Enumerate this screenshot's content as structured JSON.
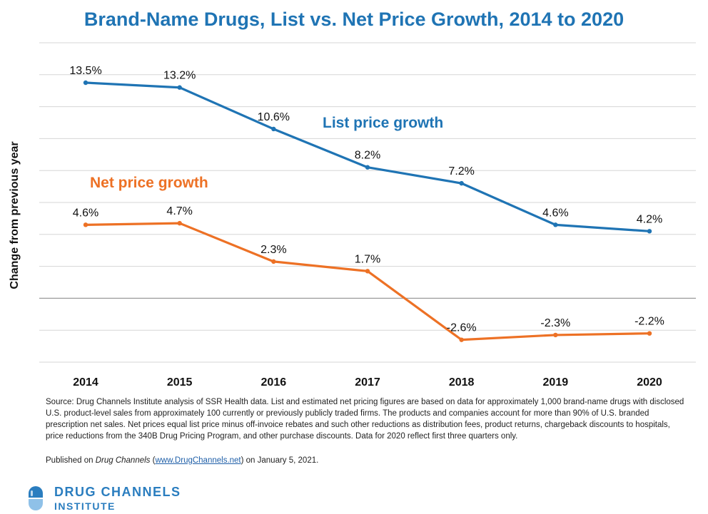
{
  "chart_data": {
    "type": "line",
    "title": "Brand-Name Drugs, List vs. Net Price Growth, 2014 to 2020",
    "ylabel": "Change from previous year",
    "xlabel": "",
    "categories": [
      "2014",
      "2015",
      "2016",
      "2017",
      "2018",
      "2019",
      "2020"
    ],
    "ylim": [
      -4,
      16
    ],
    "grid": true,
    "series": [
      {
        "name": "List price growth",
        "color": "#1f74b4",
        "values": [
          13.5,
          13.2,
          10.6,
          8.2,
          7.2,
          4.6,
          4.2
        ],
        "labels": [
          "13.5%",
          "13.2%",
          "10.6%",
          "8.2%",
          "7.2%",
          "4.6%",
          "4.2%"
        ]
      },
      {
        "name": "Net price growth",
        "color": "#ed7125",
        "values": [
          4.6,
          4.7,
          2.3,
          1.7,
          -2.6,
          -2.3,
          -2.2
        ],
        "labels": [
          "4.6%",
          "4.7%",
          "2.3%",
          "1.7%",
          "-2.6%",
          "-2.3%",
          "-2.2%"
        ]
      }
    ]
  },
  "footer": {
    "source": "Source: Drug Channels Institute analysis of SSR Health data. List and estimated net pricing figures are based on data for approximately 1,000 brand-name drugs with disclosed U.S. product-level sales from approximately 100 currently or previously publicly traded firms. The products and companies account for more than 90% of U.S. branded prescription net sales. Net prices equal list price minus off-invoice rebates and such other reductions as distribution fees, product returns, chargeback discounts to hospitals, price reductions from the 340B Drug Pricing Program, and other purchase discounts. Data for 2020 reflect first three quarters only.",
    "published_prefix": "Published on ",
    "published_outlet": "Drug Channels",
    "published_mid": " (",
    "published_link": "www.DrugChannels.net",
    "published_suffix": ") on January 5, 2021."
  },
  "logo": {
    "line1": "DRUG CHANNELS",
    "line2": "INSTITUTE",
    "icon": "capsule-icon"
  }
}
